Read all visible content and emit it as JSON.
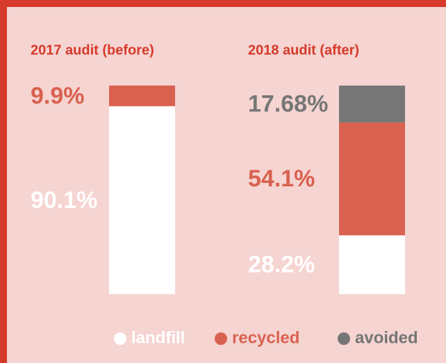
{
  "chart_data": {
    "type": "stacked_bar",
    "categories": [
      "2017 audit (before)",
      "2018 audit (after)"
    ],
    "series": [
      {
        "name": "landfill",
        "color": "#ffffff",
        "values": [
          90.1,
          28.2
        ],
        "value_labels": [
          "90.1%",
          "28.2%"
        ]
      },
      {
        "name": "recycled",
        "color": "#d96150",
        "values": [
          9.9,
          54.1
        ],
        "value_labels": [
          "9.9%",
          "54.1%"
        ]
      },
      {
        "name": "avoided",
        "color": "#767676",
        "values": [
          null,
          17.68
        ],
        "value_labels": [
          null,
          "17.68%"
        ]
      }
    ],
    "ylim": [
      0,
      100
    ]
  }
}
